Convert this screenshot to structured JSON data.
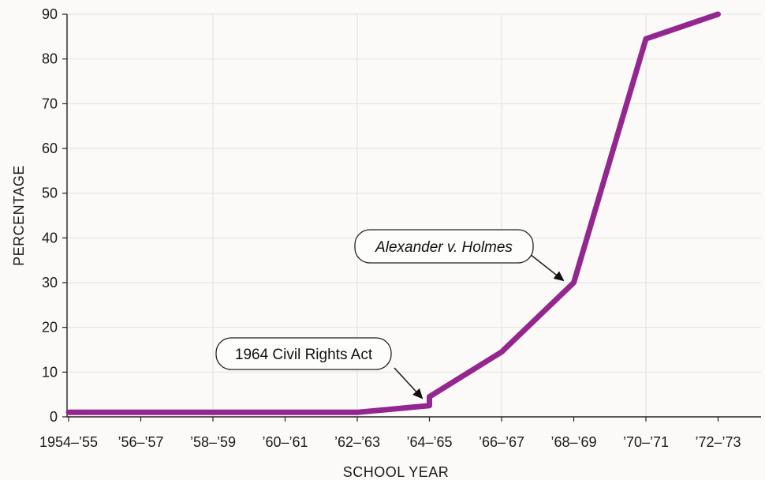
{
  "chart_data": {
    "type": "line",
    "title": "",
    "xlabel": "SCHOOL YEAR",
    "ylabel": "PERCENTAGE",
    "ylim": [
      0,
      90
    ],
    "yticks": [
      0,
      10,
      20,
      30,
      40,
      50,
      60,
      70,
      80,
      90
    ],
    "categories": [
      "1954–’55",
      "’56–’57",
      "’58–’59",
      "’60–’61",
      "’62–’63",
      "’64–’65",
      "’66–’67",
      "’68–’69",
      "’70–’71",
      "’72–’73"
    ],
    "grid": true,
    "line_color": "#94278f",
    "series": [
      {
        "points": [
          {
            "x": "1954–’55",
            "y": 1
          },
          {
            "x": "’56–’57",
            "y": 1
          },
          {
            "x": "’58–’59",
            "y": 1
          },
          {
            "x": "’60–’61",
            "y": 1
          },
          {
            "x": "’62–’63",
            "y": 1
          },
          {
            "x": "’64–’65",
            "y": 2.5
          },
          {
            "x": "’64–’65",
            "y": 4.5
          },
          {
            "x": "’66–’67",
            "y": 14.5
          },
          {
            "x": "’68–’69",
            "y": 30
          },
          {
            "x": "’70–’71",
            "y": 84.5
          },
          {
            "x": "’72–’73",
            "y": 90
          }
        ]
      }
    ],
    "annotations": [
      {
        "text": "1964 Civil Rights Act",
        "italic": false,
        "points_to": {
          "x": "’64–’65",
          "y": 4.5
        }
      },
      {
        "text": "Alexander v. Holmes",
        "italic": true,
        "points_to": {
          "x": "’68–’69",
          "y": 30
        }
      }
    ]
  }
}
